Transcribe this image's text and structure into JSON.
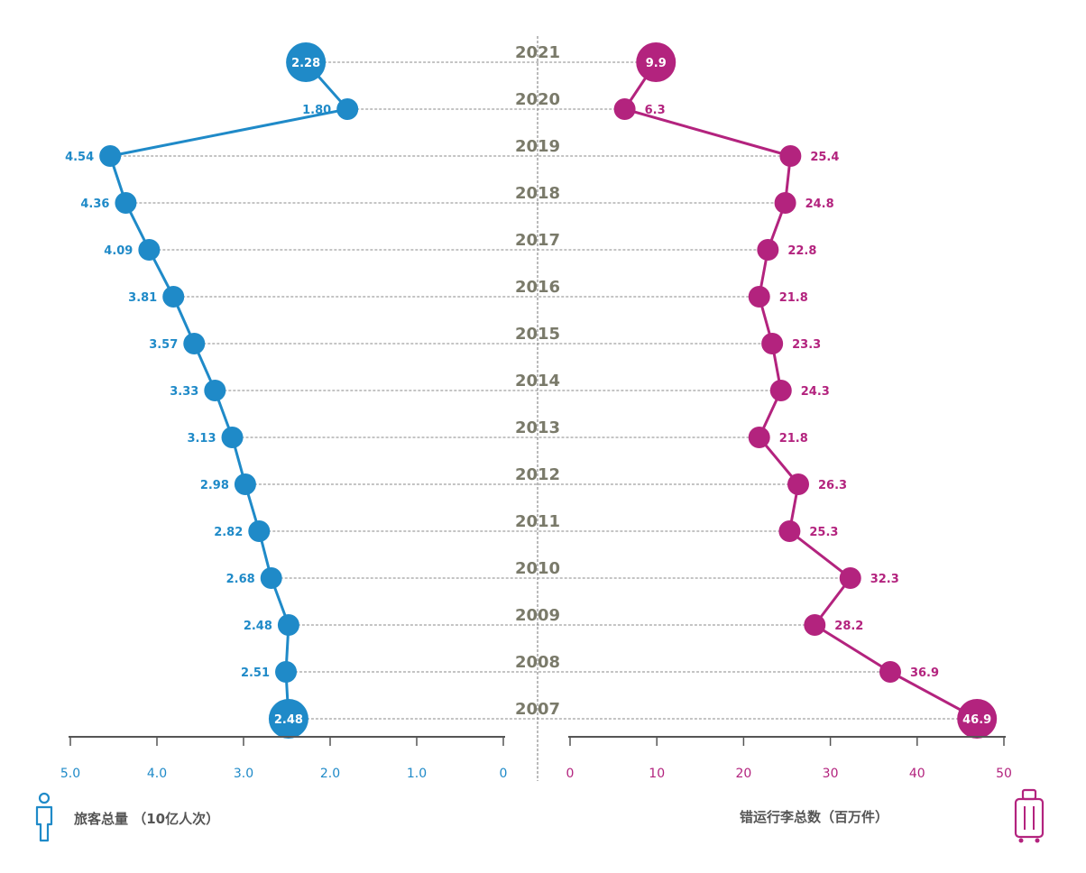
{
  "colors": {
    "passengers": "#1f8ac8",
    "bags": "#b3237e",
    "year": "#7a7a6a",
    "grid": "#888888",
    "title": "#555555"
  },
  "axis_titles": {
    "left": "旅客总量 （10亿人次）",
    "right": "错运行李总数（百万件）"
  },
  "icons": {
    "left": "person-icon",
    "right": "luggage-icon"
  },
  "chart_data": {
    "type": "line",
    "years": [
      "2021",
      "2020",
      "2019",
      "2018",
      "2017",
      "2016",
      "2015",
      "2014",
      "2013",
      "2012",
      "2011",
      "2010",
      "2009",
      "2008",
      "2007"
    ],
    "series": [
      {
        "name": "旅客总量 （10亿人次）",
        "values": [
          2.28,
          1.8,
          4.54,
          4.36,
          4.09,
          3.81,
          3.57,
          3.33,
          3.13,
          2.98,
          2.82,
          2.68,
          2.48,
          2.51,
          2.48
        ],
        "labels": [
          "2.28",
          "1.80",
          "4.54",
          "4.36",
          "4.09",
          "3.81",
          "3.57",
          "3.33",
          "3.13",
          "2.98",
          "2.82",
          "2.68",
          "2.48",
          "2.51",
          "2.48"
        ]
      },
      {
        "name": "错运行李总数（百万件）",
        "values": [
          9.9,
          6.3,
          25.4,
          24.8,
          22.8,
          21.8,
          23.3,
          24.3,
          21.8,
          26.3,
          25.3,
          32.3,
          28.2,
          36.9,
          46.9
        ],
        "labels": [
          "9.9",
          "6.3",
          "25.4",
          "24.8",
          "22.8",
          "21.8",
          "23.3",
          "24.3",
          "21.8",
          "26.3",
          "25.3",
          "32.3",
          "28.2",
          "36.9",
          "46.9"
        ]
      }
    ],
    "left_axis": {
      "ticks": [
        "5.0",
        "4.0",
        "3.0",
        "2.0",
        "1.0",
        "0"
      ],
      "range": [
        0,
        5
      ]
    },
    "right_axis": {
      "ticks": [
        "0",
        "10",
        "20",
        "30",
        "40",
        "50"
      ],
      "range": [
        0,
        50
      ]
    }
  }
}
